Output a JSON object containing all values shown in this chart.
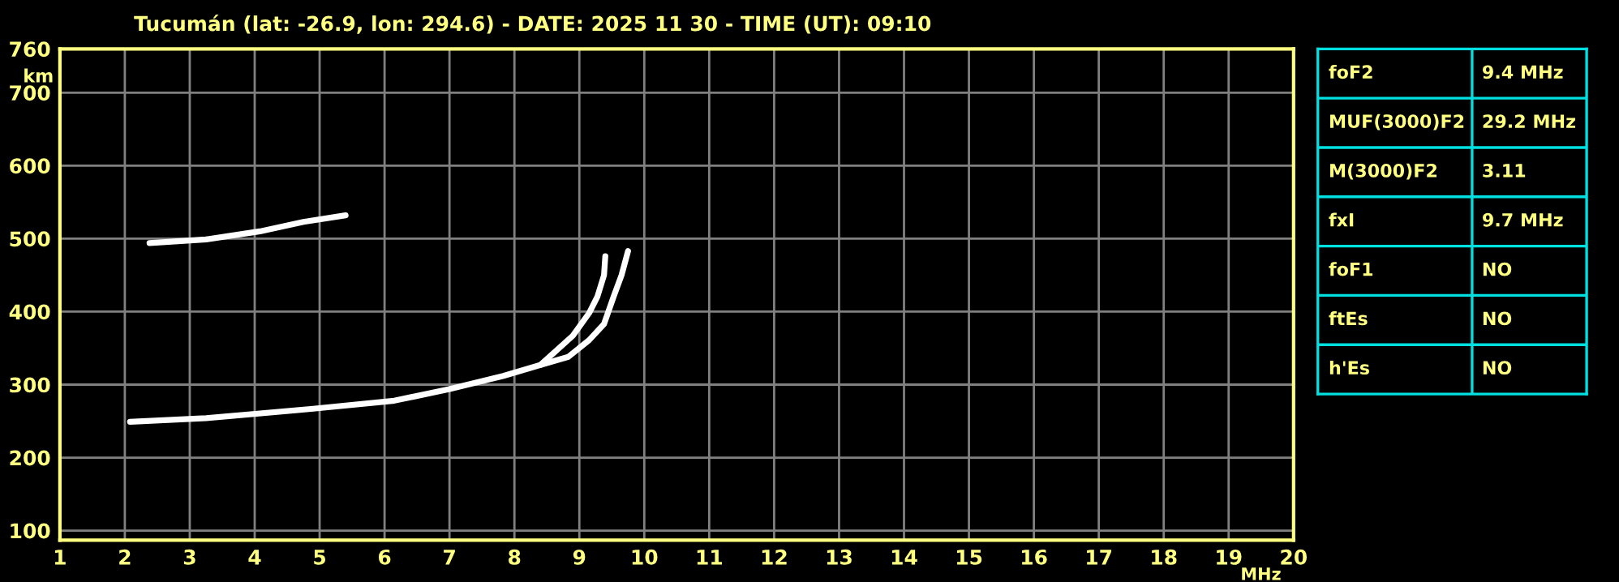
{
  "chart_data": [
    {
      "type": "line",
      "title": "Tucumán (lat: -26.9, lon: 294.6) - DATE: 2025 11 30 - TIME (UT): 09:10",
      "xlabel": "MHz",
      "ylabel": "km",
      "xlim": [
        1,
        20
      ],
      "ylim": [
        87,
        760
      ],
      "xticks": [
        1,
        2,
        3,
        4,
        5,
        6,
        7,
        8,
        9,
        10,
        11,
        12,
        13,
        14,
        15,
        16,
        17,
        18,
        19,
        20
      ],
      "yticks": [
        100,
        200,
        300,
        400,
        500,
        600,
        700,
        760
      ],
      "grid": true,
      "marker": "none",
      "line_style": "solid",
      "series": [
        {
          "color": "#ffffff",
          "x": [
            2.08,
            3.25,
            4.9,
            6.15,
            7.0,
            7.83,
            8.4,
            8.9,
            9.15,
            9.28,
            9.38,
            9.4
          ],
          "values": [
            249,
            254,
            267,
            278,
            294,
            312,
            327,
            367,
            398,
            421,
            450,
            476
          ]
        },
        {
          "color": "#ffffff",
          "x": [
            8.4,
            8.83,
            9.15,
            9.38,
            9.53,
            9.65,
            9.75
          ],
          "values": [
            327,
            338,
            361,
            383,
            421,
            450,
            483
          ]
        },
        {
          "color": "#ffffff",
          "x": [
            2.38,
            3.25,
            4.08,
            4.75,
            5.4
          ],
          "values": [
            494,
            499,
            510,
            523,
            532
          ]
        }
      ]
    },
    {
      "type": "other",
      "annotations": [
        "foF2",
        "9.4 MHz",
        "MUF(3000)F2",
        "29.2 MHz",
        "M(3000)F2",
        "3.11",
        "fxI",
        "9.7 MHz",
        "foF1",
        "NO",
        "ftEs",
        "NO",
        "h'Es",
        "NO"
      ]
    }
  ]
}
